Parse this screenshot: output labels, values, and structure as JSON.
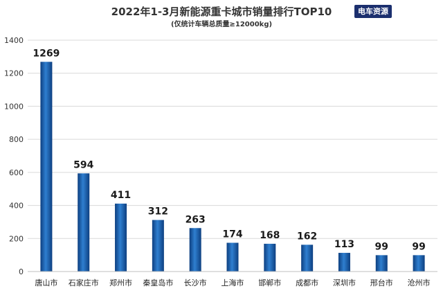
{
  "chart_data": {
    "type": "bar",
    "title": "2022年1-3月新能源重卡城市销量排行TOP10",
    "subtitle": "(仅统计车辆总质量≥12000kg)",
    "watermark": "电车资源",
    "categories": [
      "唐山市",
      "石家庄市",
      "郑州市",
      "秦皇岛市",
      "长沙市",
      "上海市",
      "邯郸市",
      "成都市",
      "深圳市",
      "邢台市",
      "沧州市"
    ],
    "values": [
      1269,
      594,
      411,
      312,
      263,
      174,
      168,
      162,
      113,
      99,
      99
    ],
    "ylim": [
      0,
      1400
    ],
    "yticks": [
      0,
      200,
      400,
      600,
      800,
      1000,
      1200,
      1400
    ],
    "grid": true,
    "legend": "none",
    "bar_color": "#1f5fa8"
  }
}
